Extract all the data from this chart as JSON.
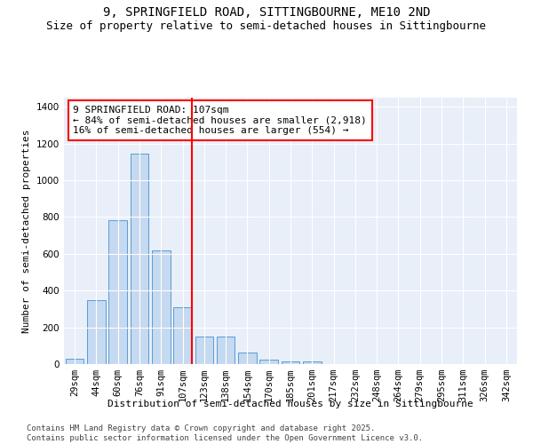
{
  "title": "9, SPRINGFIELD ROAD, SITTINGBOURNE, ME10 2ND",
  "subtitle": "Size of property relative to semi-detached houses in Sittingbourne",
  "xlabel": "Distribution of semi-detached houses by size in Sittingbourne",
  "ylabel": "Number of semi-detached properties",
  "categories": [
    "29sqm",
    "44sqm",
    "60sqm",
    "76sqm",
    "91sqm",
    "107sqm",
    "123sqm",
    "138sqm",
    "154sqm",
    "170sqm",
    "185sqm",
    "201sqm",
    "217sqm",
    "232sqm",
    "248sqm",
    "264sqm",
    "279sqm",
    "295sqm",
    "311sqm",
    "326sqm",
    "342sqm"
  ],
  "values": [
    30,
    350,
    785,
    1145,
    620,
    310,
    150,
    150,
    65,
    25,
    15,
    15,
    0,
    0,
    0,
    0,
    0,
    0,
    0,
    0,
    0
  ],
  "bar_color": "#c5d9f0",
  "bar_edge_color": "#5b9bd5",
  "vline_index": 5,
  "vline_color": "red",
  "annotation_line1": "9 SPRINGFIELD ROAD: 107sqm",
  "annotation_line2": "← 84% of semi-detached houses are smaller (2,918)",
  "annotation_line3": "16% of semi-detached houses are larger (554) →",
  "annotation_box_color": "white",
  "annotation_box_edge": "red",
  "ylim": [
    0,
    1450
  ],
  "yticks": [
    0,
    200,
    400,
    600,
    800,
    1000,
    1200,
    1400
  ],
  "bg_color": "#e8eff8",
  "footer": "Contains HM Land Registry data © Crown copyright and database right 2025.\nContains public sector information licensed under the Open Government Licence v3.0.",
  "title_fontsize": 10,
  "subtitle_fontsize": 9,
  "axis_label_fontsize": 8,
  "tick_fontsize": 7.5,
  "annotation_fontsize": 8,
  "footer_fontsize": 6.5
}
